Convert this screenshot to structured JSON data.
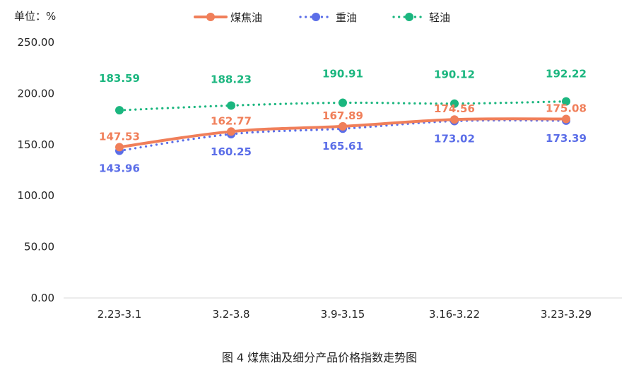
{
  "chart_data": {
    "type": "line",
    "unit_label": "单位：%",
    "caption": "图 4  煤焦油及细分产品价格指数走势图",
    "categories": [
      "2.23-3.1",
      "3.2-3.8",
      "3.9-3.15",
      "3.16-3.22",
      "3.23-3.29"
    ],
    "ylim": [
      0,
      250
    ],
    "yticks": [
      "0.00",
      "50.00",
      "100.00",
      "150.00",
      "200.00",
      "250.00"
    ],
    "grid": false,
    "legend_position": "top-center",
    "series": [
      {
        "name": "煤焦油",
        "color": "#F07F5A",
        "style": "solid-smooth",
        "values": [
          147.53,
          162.77,
          167.89,
          174.56,
          175.08
        ],
        "labels": [
          "147.53",
          "162.77",
          "167.89",
          "174.56",
          "175.08"
        ]
      },
      {
        "name": "重油",
        "color": "#5B6EE8",
        "style": "dotted",
        "values": [
          143.96,
          160.25,
          165.61,
          173.02,
          173.39
        ],
        "labels": [
          "143.96",
          "160.25",
          "165.61",
          "173.02",
          "173.39"
        ]
      },
      {
        "name": "轻油",
        "color": "#1BB67F",
        "style": "dotted",
        "values": [
          183.59,
          188.23,
          190.91,
          190.12,
          192.22
        ],
        "labels": [
          "183.59",
          "188.23",
          "190.91",
          "190.12",
          "192.22"
        ]
      }
    ]
  }
}
